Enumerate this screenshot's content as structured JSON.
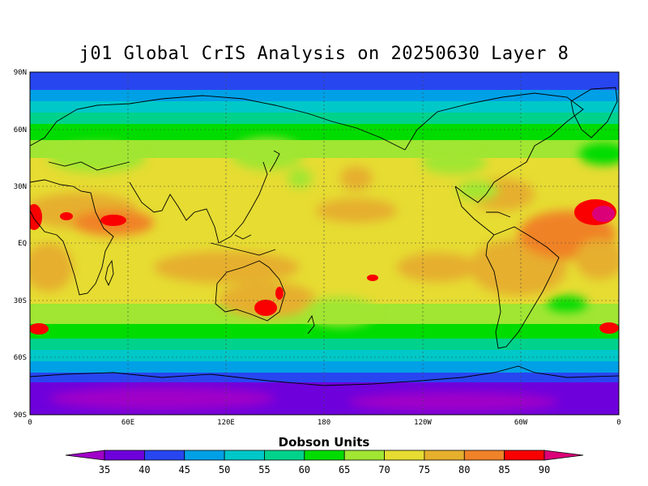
{
  "title": "j01 Global CrIS Analysis on 20250630 Layer 8",
  "colorbar": {
    "label": "Dobson Units",
    "levels": [
      35,
      40,
      45,
      50,
      55,
      60,
      65,
      70,
      75,
      80,
      85,
      90
    ],
    "colors": [
      "#a000c8",
      "#6e00dc",
      "#2846f0",
      "#00a0e6",
      "#00c8c8",
      "#00d28c",
      "#00dc00",
      "#a0e632",
      "#e6dc32",
      "#e6af2d",
      "#f08228",
      "#fa0000",
      "#dc0078"
    ]
  },
  "map": {
    "projection": "cylindrical-equidistant",
    "lon_range": [
      0,
      360
    ],
    "lat_range": [
      -90,
      90
    ],
    "lat_ticks": [
      "90N",
      "60N",
      "30N",
      "EQ",
      "30S",
      "60S",
      "90S"
    ],
    "lon_ticks": [
      "0",
      "60E",
      "120E",
      "180",
      "120W",
      "60W",
      "0"
    ],
    "grid": true
  }
}
